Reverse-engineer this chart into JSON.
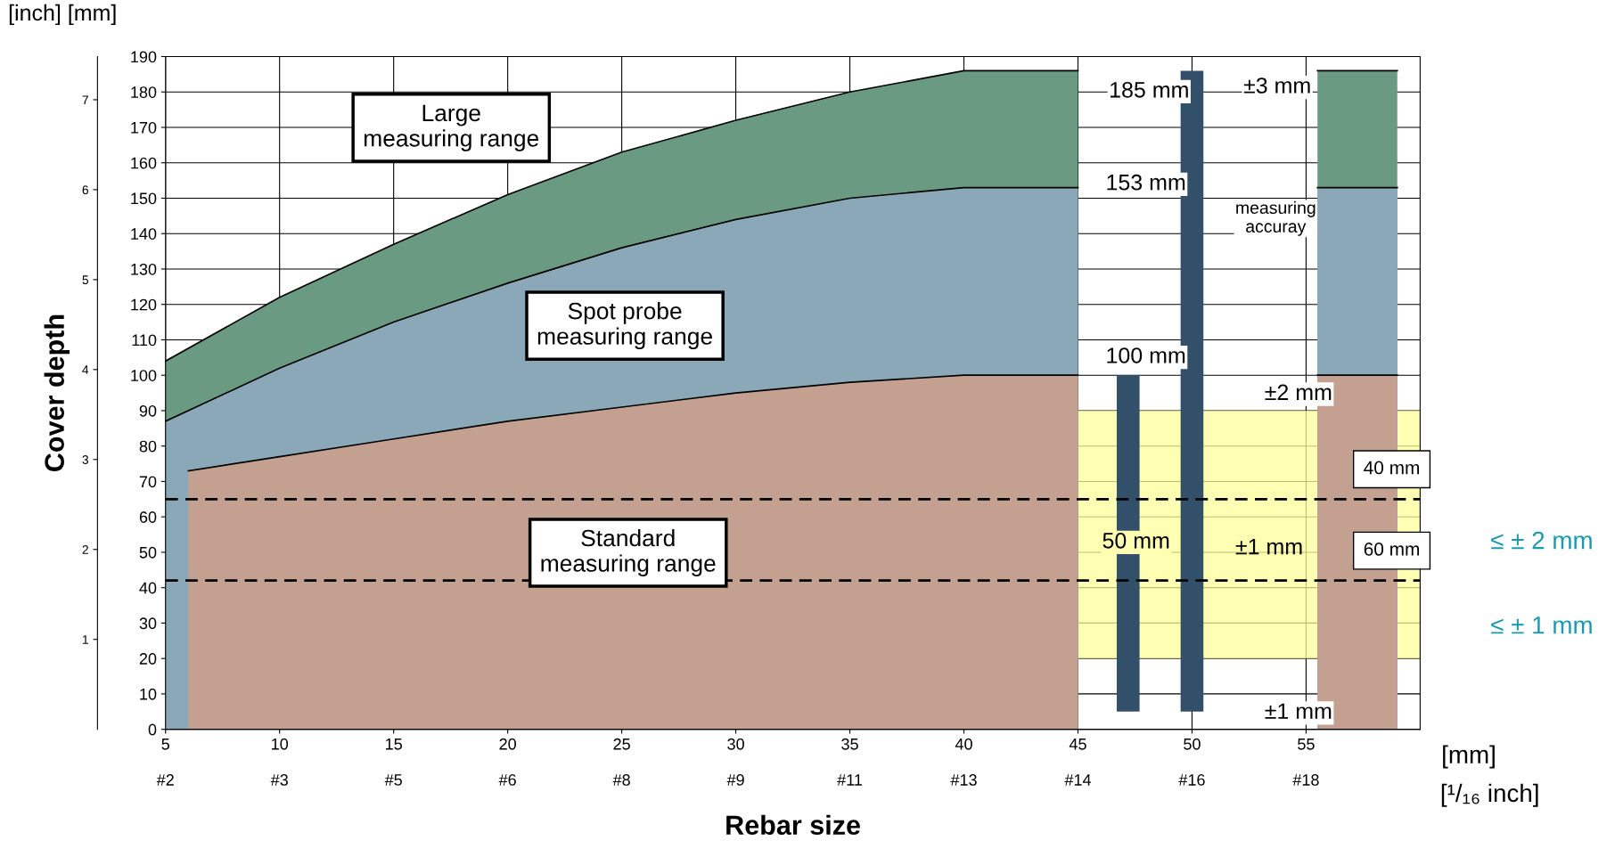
{
  "chart_data": {
    "type": "area",
    "xlabel": "Rebar size",
    "y2label": "Cover depth",
    "xlim": [
      5,
      60
    ],
    "xticks": [
      5,
      10,
      15,
      20,
      25,
      30,
      35,
      40,
      45,
      50,
      55
    ],
    "ylim": [
      0,
      190
    ],
    "yticks": [
      0,
      10,
      20,
      30,
      40,
      50,
      60,
      70,
      80,
      90,
      100,
      110,
      120,
      130,
      140,
      150,
      160,
      170,
      180,
      190
    ],
    "y2lim": [
      0,
      7.48
    ],
    "y2ticks": [
      1,
      2,
      3,
      4,
      5,
      6,
      7
    ],
    "grid": true,
    "series": [
      {
        "color": "#6a9a82",
        "x": [
          5,
          10,
          15,
          20,
          25,
          30,
          35,
          40,
          45,
          50,
          55.5,
          59
        ],
        "values": [
          104,
          122,
          137,
          151,
          163,
          172,
          180,
          186,
          186,
          null,
          186,
          186
        ]
      },
      {
        "color": "#8aa8b8",
        "x": [
          5,
          10,
          15,
          20,
          25,
          30,
          35,
          40,
          45,
          50,
          55.5,
          59
        ],
        "values": [
          87,
          102,
          115,
          126,
          136,
          144,
          150,
          153,
          153,
          null,
          153,
          153
        ]
      },
      {
        "color": "#c4a091",
        "x": [
          6,
          10,
          15,
          20,
          25,
          30,
          35,
          40,
          45,
          50,
          55.5,
          59
        ],
        "values": [
          73,
          77,
          82,
          87,
          91,
          95,
          98,
          100,
          100,
          null,
          100,
          100
        ]
      },
      {
        "type": "bar",
        "color": "#33506a",
        "x": [
          47.2,
          50
        ],
        "base": [
          5,
          5
        ],
        "values": [
          95,
          181
        ]
      }
    ],
    "bands": [
      {
        "axis": "y",
        "from": 20,
        "to": 90,
        "color": "#ffff99"
      }
    ],
    "ref_lines": [
      {
        "axis": "y",
        "value": 65,
        "label": "40 mm",
        "line_style": "dashed"
      },
      {
        "axis": "y",
        "value": 42,
        "label": "60 mm",
        "line_style": "dashed"
      }
    ],
    "annotations": [
      "[inch] [mm]",
      "Large\nmeasuring range",
      "Spot probe\nmeasuring range",
      "Standard\nmeasuring range",
      "185 mm",
      "±3 mm",
      "153 mm",
      "100 mm",
      "±2 mm",
      "50 mm",
      "±1 mm",
      "±1 mm",
      "measuring\naccuray",
      "≤ ± 2 mm",
      "≤ ± 1 mm",
      "[mm]",
      "[¹/₁₆ inch]",
      "#2",
      "#3",
      "#5",
      "#6",
      "#8",
      "#9",
      "#11",
      "#13",
      "#14",
      "#16",
      "#18"
    ]
  }
}
